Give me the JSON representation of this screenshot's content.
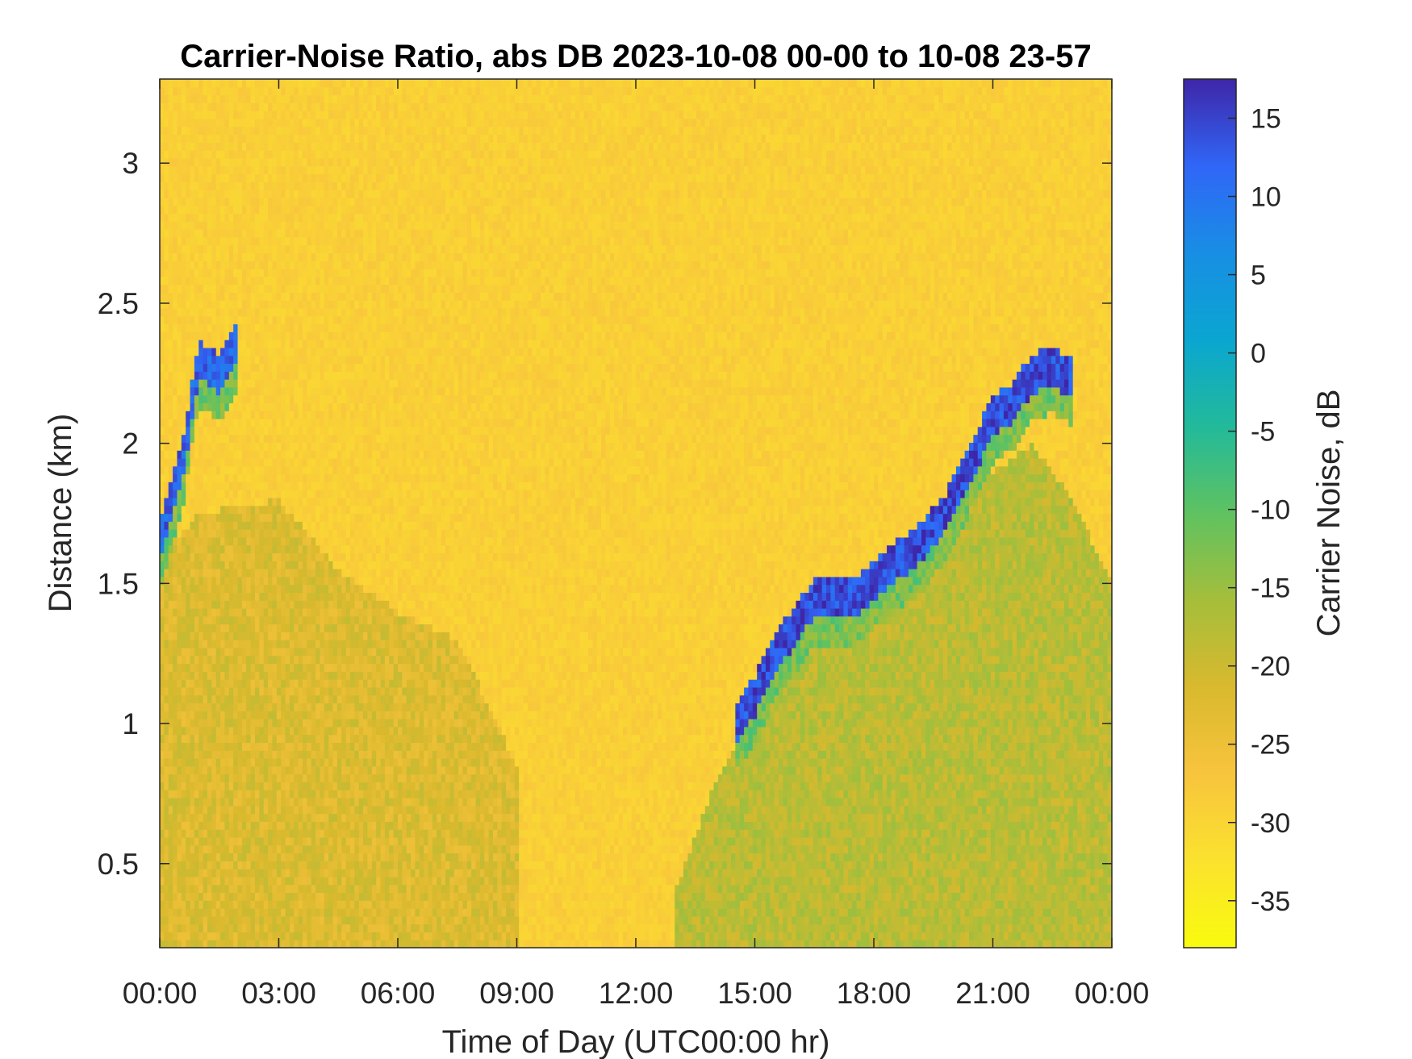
{
  "chart_data": {
    "type": "heatmap",
    "title": "Carrier-Noise Ratio, abs DB 2023-10-08 00-00 to 10-08 23-57",
    "xlabel": "Time of Day (UTC00:00 hr)",
    "ylabel": "Distance (km)",
    "x_unit": "hours",
    "xlim": [
      0,
      24
    ],
    "ylim": [
      0.2,
      3.3
    ],
    "x_ticks": [
      0,
      3,
      6,
      9,
      12,
      15,
      18,
      21,
      24
    ],
    "x_tick_labels": [
      "00:00",
      "03:00",
      "06:00",
      "09:00",
      "12:00",
      "15:00",
      "18:00",
      "21:00",
      "00:00"
    ],
    "y_ticks": [
      0.5,
      1,
      1.5,
      2,
      2.5,
      3
    ],
    "y_tick_labels": [
      "0.5",
      "1",
      "1.5",
      "2",
      "2.5",
      "3"
    ],
    "colorbar": {
      "label": "Carrier Noise, dB",
      "range": [
        -38,
        17.5
      ],
      "ticks": [
        15,
        10,
        5,
        0,
        -5,
        -10,
        -15,
        -20,
        -25,
        -30,
        -35
      ],
      "tick_labels": [
        "15",
        "10",
        "5",
        "0",
        "-5",
        "-10",
        "-15",
        "-20",
        "-25",
        "-30",
        "-35"
      ],
      "colormap": "parula"
    },
    "background_value_db": -29,
    "features": [
      {
        "name": "high-signal layer top, early morning",
        "value_db": 12,
        "points": [
          [
            0.0,
            1.7
          ],
          [
            0.3,
            1.85
          ],
          [
            0.6,
            2.0
          ],
          [
            0.8,
            2.2
          ],
          [
            1.0,
            2.35
          ],
          [
            1.5,
            2.3
          ],
          [
            2.0,
            2.42
          ]
        ]
      },
      {
        "name": "high-signal layer top, afternoon-evening",
        "value_db": 14,
        "points": [
          [
            14.5,
            1.05
          ],
          [
            15.0,
            1.15
          ],
          [
            15.5,
            1.3
          ],
          [
            16.5,
            1.5
          ],
          [
            17.5,
            1.5
          ],
          [
            18.5,
            1.62
          ],
          [
            19.2,
            1.7
          ],
          [
            19.8,
            1.8
          ],
          [
            20.5,
            2.0
          ],
          [
            21.0,
            2.15
          ],
          [
            21.5,
            2.2
          ],
          [
            22.0,
            2.3
          ],
          [
            22.5,
            2.33
          ],
          [
            23.0,
            2.28
          ]
        ]
      },
      {
        "name": "boundary layer region, night",
        "value_db": -22,
        "x_range": [
          0,
          9
        ],
        "top_points": [
          [
            0.0,
            1.6
          ],
          [
            1.0,
            1.75
          ],
          [
            3.0,
            1.8
          ],
          [
            4.5,
            1.55
          ],
          [
            6.0,
            1.4
          ],
          [
            7.5,
            1.3
          ],
          [
            9.0,
            0.85
          ]
        ]
      },
      {
        "name": "boundary layer region, afternoon",
        "value_db": -18,
        "x_range": [
          13,
          24
        ],
        "top_points": [
          [
            13.0,
            0.4
          ],
          [
            14.0,
            0.8
          ],
          [
            15.0,
            1.05
          ],
          [
            16.5,
            1.35
          ],
          [
            18.0,
            1.45
          ],
          [
            19.5,
            1.6
          ],
          [
            21.0,
            1.9
          ],
          [
            22.0,
            2.0
          ],
          [
            23.0,
            1.8
          ],
          [
            24.0,
            1.5
          ]
        ]
      }
    ]
  }
}
